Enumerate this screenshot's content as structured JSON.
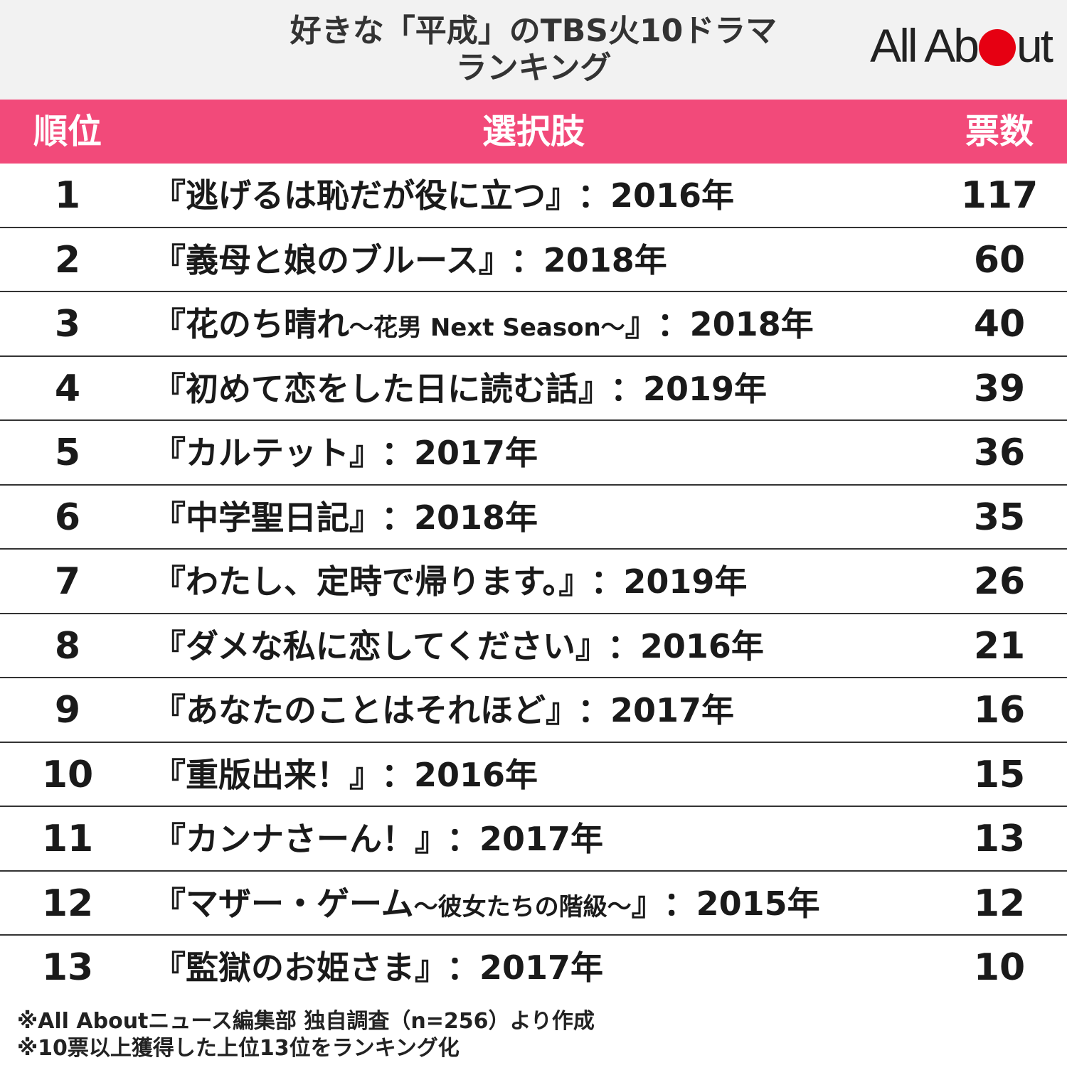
{
  "title_line1": "好きな「平成」のTBS火10ドラマ",
  "title_line2": "ランキング",
  "logo_text": "All Ab",
  "logo_text_end": "ut",
  "columns": {
    "rank": "順位",
    "choice": "選択肢",
    "votes": "票数"
  },
  "chart_data": {
    "type": "table",
    "rows": [
      {
        "rank": "1",
        "title": "『逃げるは恥だが役に立つ』",
        "sub": "",
        "close": "",
        "year": "：2016年",
        "votes": "117"
      },
      {
        "rank": "2",
        "title": "『義母と娘のブルース』",
        "sub": "",
        "close": "",
        "year": "：2018年",
        "votes": "60"
      },
      {
        "rank": "3",
        "title": "『花のち晴れ",
        "sub": "～花男 Next Season～",
        "close": "』",
        "year": "：2018年",
        "votes": "40"
      },
      {
        "rank": "4",
        "title": "『初めて恋をした日に読む話』",
        "sub": "",
        "close": "",
        "year": "：2019年",
        "votes": "39"
      },
      {
        "rank": "5",
        "title": "『カルテット』",
        "sub": "",
        "close": "",
        "year": "：2017年",
        "votes": "36"
      },
      {
        "rank": "6",
        "title": "『中学聖日記』",
        "sub": "",
        "close": "",
        "year": "：2018年",
        "votes": "35"
      },
      {
        "rank": "7",
        "title": "『わたし、定時で帰ります。』",
        "sub": "",
        "close": "",
        "year": "：2019年",
        "votes": "26"
      },
      {
        "rank": "8",
        "title": "『ダメな私に恋してください』",
        "sub": "",
        "close": "",
        "year": "：2016年",
        "votes": "21"
      },
      {
        "rank": "9",
        "title": "『あなたのことはそれほど』",
        "sub": "",
        "close": "",
        "year": "：2017年",
        "votes": "16"
      },
      {
        "rank": "10",
        "title": "『重版出来！』",
        "sub": "",
        "close": "",
        "year": "：2016年",
        "votes": "15"
      },
      {
        "rank": "11",
        "title": "『カンナさーん！』",
        "sub": "",
        "close": "",
        "year": "：2017年",
        "votes": "13"
      },
      {
        "rank": "12",
        "title": "『マザー・ゲーム",
        "sub": "～彼女たちの階級～",
        "close": "』",
        "year": "：2015年",
        "votes": "12"
      },
      {
        "rank": "13",
        "title": "『監獄のお姫さま』",
        "sub": "",
        "close": "",
        "year": "：2017年",
        "votes": "10"
      }
    ]
  },
  "notes": [
    "※All Aboutニュース編集部 独自調査（n=256）より作成",
    "※10票以上獲得した上位13位をランキング化"
  ],
  "colors": {
    "header_bg": "#f2f2f2",
    "column_header_bg": "#f24a7a",
    "logo_dot": "#e60012"
  }
}
